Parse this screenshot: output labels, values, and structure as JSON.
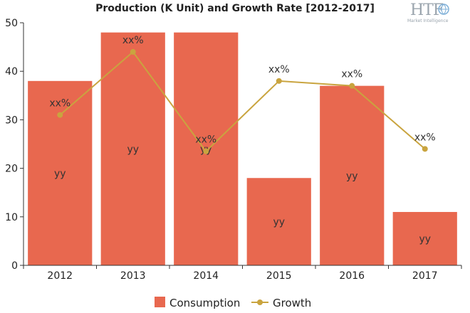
{
  "chart_data": {
    "type": "bar",
    "title": "Production (K Unit) and Growth Rate [2012-2017]",
    "categories": [
      "2012",
      "2013",
      "2014",
      "2015",
      "2016",
      "2017"
    ],
    "ylim": [
      0,
      50
    ],
    "yticks": [
      0,
      10,
      20,
      30,
      40,
      50
    ],
    "series": [
      {
        "name": "Consumption",
        "type": "bar",
        "color": "#e8684f",
        "values": [
          38,
          48,
          48,
          18,
          37,
          11
        ],
        "data_labels": [
          "yy",
          "yy",
          "yy",
          "yy",
          "yy",
          "yy"
        ]
      },
      {
        "name": "Growth",
        "type": "line",
        "color": "#c9a43f",
        "values": [
          31,
          44,
          23.5,
          38,
          37,
          24
        ],
        "data_labels": [
          "xx%",
          "xx%",
          "xx%",
          "xx%",
          "xx%",
          "xx%"
        ]
      }
    ],
    "grid": false,
    "legend_position": "bottom"
  },
  "logo": {
    "text": "HTF",
    "subtext": "Market Intelligence",
    "icon": "globe-icon"
  }
}
